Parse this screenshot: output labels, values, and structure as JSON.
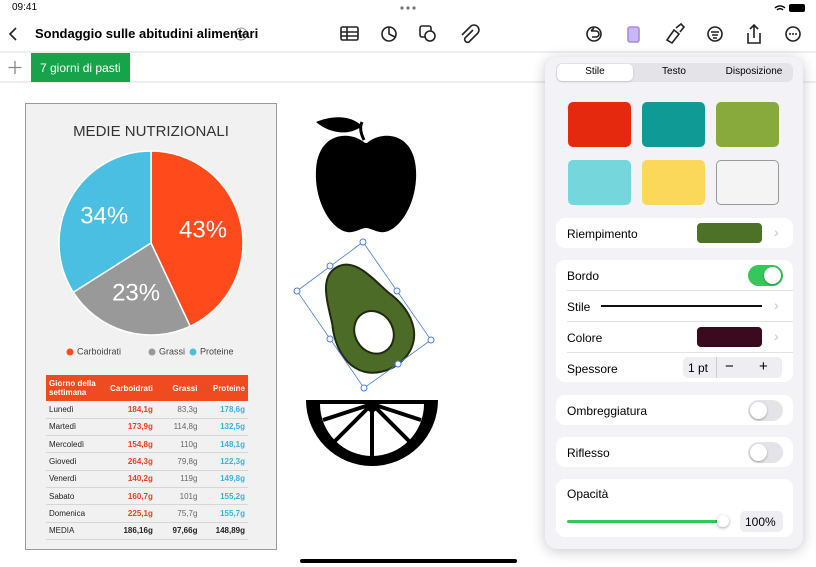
{
  "status_bar": {
    "time": "09:41"
  },
  "toolbar": {
    "document_title": "Sondaggio sulle abitudini alimentari"
  },
  "sheet_tabs": [
    "7 giorni di pasti"
  ],
  "chart": {
    "type": "pie",
    "title": "MEDIE NUTRIZIONALI",
    "categories": [
      "Carboidrati",
      "Grassi",
      "Proteine"
    ],
    "values": [
      43,
      23,
      34
    ],
    "value_labels": [
      "43%",
      "23%",
      "34%"
    ],
    "colors": [
      "#ff4a1c",
      "#999999",
      "#4bbfe1"
    ]
  },
  "table": {
    "header": [
      "Giorno della settimana",
      "Carboidrati",
      "Grassi",
      "Proteine"
    ],
    "rows": [
      [
        "Lunedì",
        "184,1g",
        "83,3g",
        "178,6g"
      ],
      [
        "Martedì",
        "173,9g",
        "114,8g",
        "132,5g"
      ],
      [
        "Mercoledì",
        "154,8g",
        "110g",
        "148,1g"
      ],
      [
        "Giovedì",
        "264,3g",
        "79,8g",
        "122,3g"
      ],
      [
        "Venerdì",
        "140,2g",
        "119g",
        "149,8g"
      ],
      [
        "Sabato",
        "160,7g",
        "101g",
        "155,2g"
      ],
      [
        "Domenica",
        "225,1g",
        "75,7g",
        "155,7g"
      ],
      [
        "MEDIA",
        "186,16g",
        "97,66g",
        "148,89g"
      ]
    ]
  },
  "format_panel": {
    "tabs": [
      "Stile",
      "Testo",
      "Disposizione"
    ],
    "fill_label": "Riempimento",
    "border_label": "Bordo",
    "line_style_label": "Stile",
    "color_label": "Colore",
    "thickness_label": "Spessore",
    "thickness_value": "1 pt",
    "shadow_label": "Ombreggiatura",
    "reflection_label": "Riflesso",
    "opacity_label": "Opacità",
    "opacity_value": "100%"
  }
}
